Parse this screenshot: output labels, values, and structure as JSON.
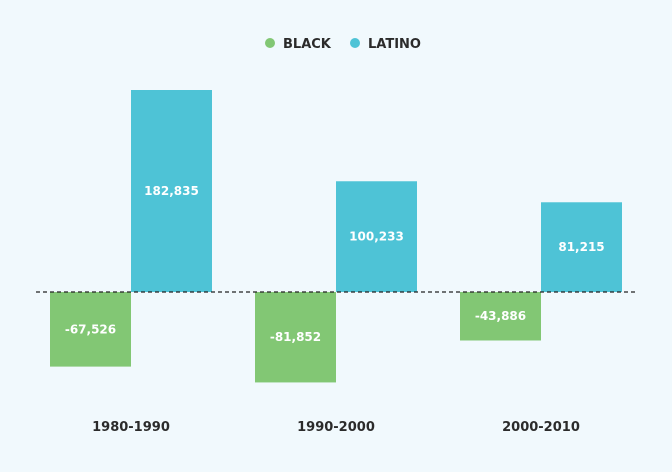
{
  "chart_data": {
    "type": "bar",
    "title": "",
    "xlabel": "",
    "ylabel": "",
    "categories": [
      "1980-1990",
      "1990-2000",
      "2000-2010"
    ],
    "series": [
      {
        "name": "BLACK",
        "color": "#82c774",
        "values": [
          -67526,
          -81852,
          -43886
        ],
        "labels": [
          "-67,526",
          "-81,852",
          "-43,886"
        ]
      },
      {
        "name": "LATINO",
        "color": "#4ec3d6",
        "values": [
          182835,
          100233,
          81215
        ],
        "labels": [
          "182,835",
          "100,233",
          "81,215"
        ]
      }
    ],
    "ylim": [
      -100000,
      200000
    ],
    "legend": "top-center",
    "grid": false,
    "baseline": {
      "value": 0,
      "style": "dashed",
      "color": "#222222"
    }
  }
}
